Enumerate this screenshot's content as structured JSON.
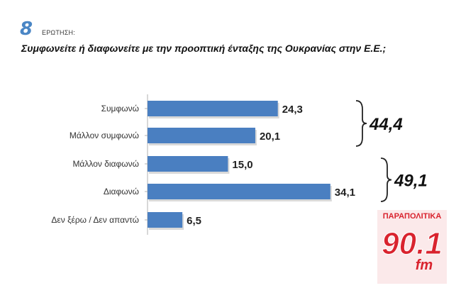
{
  "header": {
    "question_number": "8",
    "question_label": "ΕΡΩΤΗΣΗ:",
    "question_text": "Συμφωνείτε ή διαφωνείτε με την προοπτική ένταξης της Ουκρανίας στην Ε.Ε.;"
  },
  "chart_data": {
    "type": "bar",
    "orientation": "horizontal",
    "categories": [
      "Συμφωνώ",
      "Μάλλον συμφωνώ",
      "Μάλλον διαφωνώ",
      "Διαφωνώ",
      "Δεν ξέρω / Δεν απαντώ"
    ],
    "values": [
      24.3,
      20.1,
      15.0,
      34.1,
      6.5
    ],
    "value_labels": [
      "24,3",
      "20,1",
      "15,0",
      "34,1",
      "6,5"
    ],
    "xlim": [
      0,
      40
    ],
    "bar_color": "#4a7fc1",
    "groups": [
      {
        "label": "44,4",
        "categories": [
          "Συμφωνώ",
          "Μάλλον συμφωνώ"
        ]
      },
      {
        "label": "49,1",
        "categories": [
          "Μάλλον διαφωνώ",
          "Διαφωνώ"
        ]
      }
    ],
    "grid": false
  },
  "logo": {
    "top_text": "ΠΑΡΑΠΟΛΙΤΙΚΑ",
    "main_text": "90.1",
    "sub_text": "fm",
    "color": "#d9232e"
  }
}
